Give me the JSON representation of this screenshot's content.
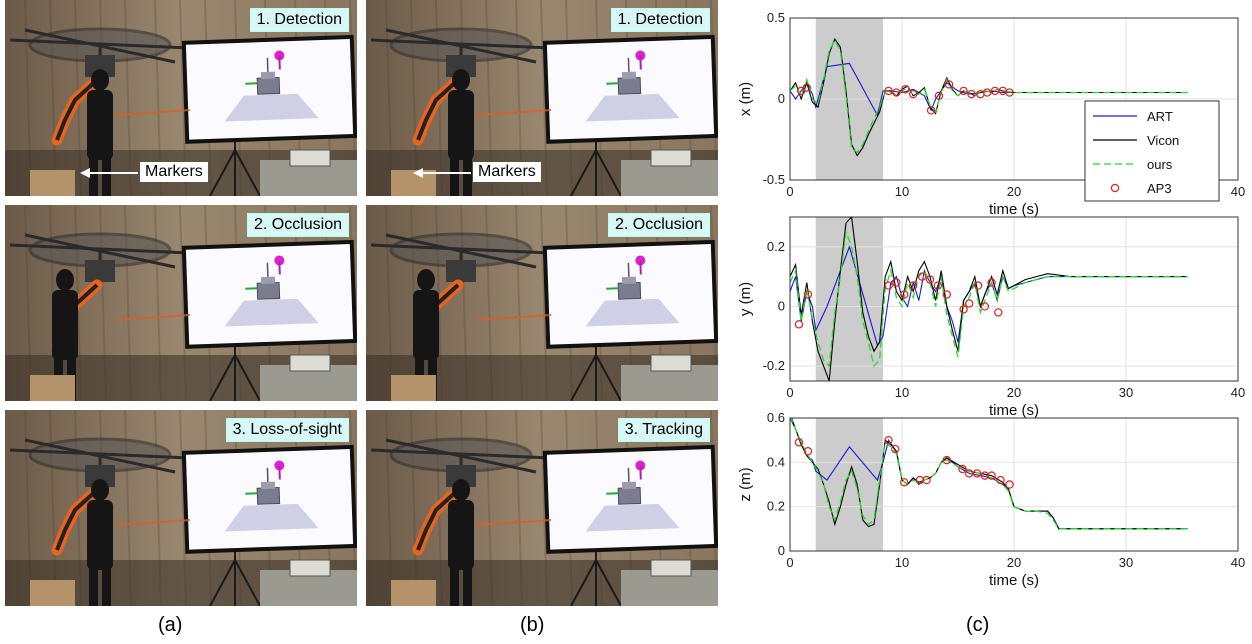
{
  "columns": {
    "a": {
      "caption": "(a)",
      "panels": [
        {
          "label": "1. Detection",
          "marker_label": "Markers"
        },
        {
          "label": "2. Occlusion"
        },
        {
          "label": "3. Loss-of-sight"
        }
      ]
    },
    "b": {
      "caption": "(b)",
      "panels": [
        {
          "label": "1. Detection",
          "marker_label": "Markers"
        },
        {
          "label": "2. Occlusion"
        },
        {
          "label": "3. Tracking"
        }
      ]
    },
    "c": {
      "caption": "(c)"
    }
  },
  "colors": {
    "ART": "#1a1adb",
    "Vicon": "#000000",
    "ours": "#22dd22",
    "AP3": "#e02020",
    "shade": "#cccccc",
    "robot_orange": "#e8641e",
    "label_bg": "#d8f7f7"
  },
  "chart_data": [
    {
      "type": "line",
      "xlabel": "time (s)",
      "ylabel": "x (m)",
      "xlim": [
        0,
        40
      ],
      "ylim": [
        -0.5,
        0.5
      ],
      "xticks": [
        0,
        10,
        20,
        30,
        40
      ],
      "yticks": [
        -0.5,
        0,
        0.5
      ],
      "grid": true,
      "shaded_interval": [
        2.3,
        8.3
      ],
      "legend": {
        "placement": "bottom-right",
        "entries": [
          "ART",
          "Vicon",
          "ours",
          "AP3"
        ]
      },
      "series": [
        {
          "name": "ART",
          "style": "solid",
          "x": [
            0,
            0.5,
            1,
            1.5,
            2,
            2.3,
            3.3,
            5.3,
            7.8,
            8.3,
            9,
            10,
            11,
            12,
            12.6,
            13,
            14,
            15,
            16,
            17,
            18,
            19,
            20,
            22,
            25,
            30,
            35.5
          ],
          "y": [
            0.05,
            0,
            0.05,
            0.1,
            0.03,
            -0.05,
            0.2,
            0.22,
            -0.1,
            0.05,
            0.05,
            0.04,
            0.06,
            0.02,
            -0.07,
            0.0,
            0.1,
            0.05,
            0.03,
            0.04,
            0.05,
            0.04,
            0.04,
            0.04,
            0.04,
            0.04,
            0.04
          ]
        },
        {
          "name": "Vicon",
          "style": "solid",
          "x": [
            0,
            0.5,
            1,
            1.5,
            2,
            2.5,
            3,
            3.5,
            4,
            4.5,
            5,
            5.5,
            6,
            6.5,
            7,
            7.5,
            8,
            8.5,
            9,
            9.5,
            10,
            10.5,
            11,
            11.5,
            12,
            12.5,
            13,
            13.5,
            14,
            14.5,
            15,
            15.5,
            16,
            16.5,
            17,
            17.5,
            18,
            18.5,
            19,
            20,
            22,
            25,
            30,
            35.5
          ],
          "y": [
            0.05,
            0.1,
            0,
            0.1,
            -0.02,
            -0.05,
            0.1,
            0.28,
            0.37,
            0.32,
            0.05,
            -0.28,
            -0.35,
            -0.3,
            -0.22,
            -0.15,
            -0.08,
            0.05,
            0.05,
            0.02,
            0.06,
            0.08,
            0.02,
            0.04,
            0.07,
            -0.05,
            -0.09,
            0.05,
            0.13,
            0.06,
            0.02,
            0.05,
            0.04,
            0.02,
            0.04,
            0.05,
            0.04,
            0.06,
            0.05,
            0.04,
            0.04,
            0.04,
            0.04,
            0.04
          ]
        },
        {
          "name": "ours",
          "style": "dashed",
          "x": [
            0,
            0.5,
            1,
            1.5,
            2,
            2.5,
            3,
            3.5,
            4,
            4.5,
            5,
            5.5,
            6,
            6.5,
            7,
            7.5,
            8,
            8.5,
            9,
            9.5,
            10,
            10.5,
            11,
            11.5,
            12,
            12.5,
            13,
            13.5,
            14,
            14.5,
            15,
            15.5,
            16,
            16.5,
            17,
            17.5,
            18,
            18.5,
            19,
            20,
            22,
            25,
            30,
            35.5
          ],
          "y": [
            0.05,
            0.08,
            0.02,
            0.12,
            0.0,
            -0.03,
            0.12,
            0.3,
            0.36,
            0.3,
            0.02,
            -0.3,
            -0.33,
            -0.28,
            -0.2,
            -0.12,
            -0.05,
            0.05,
            0.04,
            0.02,
            0.05,
            0.07,
            0.02,
            0.03,
            0.06,
            -0.04,
            -0.08,
            0.04,
            0.12,
            0.05,
            0.02,
            0.05,
            0.04,
            0.02,
            0.04,
            0.05,
            0.04,
            0.06,
            0.05,
            0.04,
            0.04,
            0.04,
            0.04,
            0.04
          ]
        },
        {
          "name": "AP3",
          "style": "markers",
          "x": [
            1,
            1.5,
            8.8,
            9.5,
            10.3,
            11,
            12.6,
            13.3,
            14.2,
            15.5,
            16.2,
            17,
            17.6,
            18.3,
            19,
            19.6
          ],
          "y": [
            0.05,
            0.07,
            0.05,
            0.04,
            0.06,
            0.03,
            -0.07,
            0.02,
            0.09,
            0.05,
            0.03,
            0.03,
            0.04,
            0.05,
            0.05,
            0.04
          ]
        }
      ]
    },
    {
      "type": "line",
      "xlabel": "time (s)",
      "ylabel": "y (m)",
      "xlim": [
        0,
        40
      ],
      "ylim": [
        -0.25,
        0.3
      ],
      "xticks": [
        0,
        10,
        20,
        30,
        40
      ],
      "yticks": [
        -0.2,
        0,
        0.2
      ],
      "grid": true,
      "shaded_interval": [
        2.3,
        8.3
      ],
      "series": [
        {
          "name": "ART",
          "style": "solid",
          "x": [
            0,
            0.5,
            1,
            1.5,
            2,
            2.3,
            3.3,
            5.3,
            7.8,
            8.3,
            9,
            9.5,
            10,
            10.5,
            11,
            11.5,
            12,
            12.5,
            13,
            13.5,
            14,
            14.5,
            15,
            15.5,
            16,
            16.5,
            17,
            17.5,
            18,
            18.5,
            19,
            19.5,
            20,
            21,
            22,
            23,
            25,
            30,
            35.5
          ],
          "y": [
            0.05,
            0.1,
            -0.05,
            0.05,
            0.0,
            -0.08,
            0.0,
            0.2,
            -0.13,
            -0.1,
            0.08,
            0.1,
            0.03,
            0.0,
            0.08,
            0.02,
            0.12,
            0.08,
            0.05,
            0.1,
            0.0,
            -0.05,
            -0.12,
            0.02,
            0.05,
            0.08,
            0.0,
            0.05,
            0.08,
            0.02,
            0.1,
            0.06,
            0.07,
            0.08,
            0.09,
            0.1,
            0.1,
            0.1,
            0.1
          ]
        },
        {
          "name": "Vicon",
          "style": "solid",
          "x": [
            0,
            0.5,
            1,
            1.5,
            2,
            2.5,
            3,
            3.5,
            4,
            4.5,
            5,
            5.5,
            6,
            6.5,
            7,
            7.5,
            8,
            8.5,
            9,
            9.5,
            10,
            10.5,
            11,
            11.5,
            12,
            12.5,
            13,
            13.5,
            14,
            14.5,
            15,
            15.5,
            16,
            16.5,
            17,
            17.5,
            18,
            18.5,
            19,
            19.5,
            20,
            21,
            22,
            23,
            25,
            30,
            35.5
          ],
          "y": [
            0.1,
            0.14,
            -0.03,
            0.08,
            -0.05,
            -0.15,
            -0.2,
            -0.25,
            -0.05,
            0.12,
            0.28,
            0.3,
            0.15,
            -0.02,
            -0.1,
            -0.15,
            -0.12,
            0.1,
            0.15,
            0.05,
            0.02,
            0.1,
            0.05,
            0.12,
            0.15,
            0.1,
            0.02,
            0.12,
            0.0,
            -0.08,
            -0.15,
            0.02,
            0.05,
            0.1,
            0.0,
            0.05,
            0.1,
            0.04,
            0.12,
            0.06,
            0.07,
            0.09,
            0.1,
            0.11,
            0.1,
            0.1,
            0.1
          ]
        },
        {
          "name": "ours",
          "style": "dashed",
          "x": [
            0,
            0.5,
            1,
            1.5,
            2,
            2.5,
            3,
            3.5,
            4,
            4.5,
            5,
            5.5,
            6,
            6.5,
            7,
            7.5,
            8,
            8.5,
            9,
            9.5,
            10,
            10.5,
            11,
            11.5,
            12,
            12.5,
            13,
            13.5,
            14,
            14.5,
            15,
            15.5,
            16,
            16.5,
            17,
            17.5,
            18,
            18.5,
            19,
            19.5,
            20,
            21,
            22,
            23,
            25,
            30,
            35.5
          ],
          "y": [
            0.08,
            0.12,
            -0.05,
            0.06,
            -0.04,
            -0.12,
            -0.18,
            -0.2,
            -0.02,
            0.1,
            0.25,
            0.2,
            0.1,
            -0.05,
            -0.12,
            -0.2,
            -0.18,
            0.06,
            0.12,
            0.03,
            0.0,
            0.08,
            0.03,
            0.1,
            0.12,
            0.08,
            0.0,
            0.1,
            -0.03,
            -0.1,
            -0.17,
            0.0,
            0.03,
            0.08,
            -0.02,
            0.03,
            0.08,
            0.02,
            0.1,
            0.05,
            0.06,
            0.08,
            0.09,
            0.1,
            0.1,
            0.1,
            0.1
          ]
        },
        {
          "name": "AP3",
          "style": "markers",
          "x": [
            0.8,
            1.6,
            8.8,
            9.5,
            10.2,
            11,
            11.8,
            12.5,
            13.2,
            14,
            15.5,
            16,
            16.8,
            17.4,
            18,
            18.6
          ],
          "y": [
            -0.06,
            0.04,
            0.07,
            0.08,
            0.04,
            0.07,
            0.1,
            0.09,
            0.07,
            0.04,
            -0.01,
            0.01,
            0.07,
            0.0,
            0.08,
            -0.02
          ]
        }
      ]
    },
    {
      "type": "line",
      "xlabel": "time (s)",
      "ylabel": "z (m)",
      "xlim": [
        0,
        40
      ],
      "ylim": [
        0,
        0.6
      ],
      "xticks": [
        0,
        10,
        20,
        30,
        40
      ],
      "yticks": [
        0,
        0.2,
        0.4,
        0.6
      ],
      "grid": true,
      "shaded_interval": [
        2.3,
        8.3
      ],
      "series": [
        {
          "name": "ART",
          "style": "solid",
          "x": [
            0,
            0.5,
            1,
            1.5,
            2,
            2.3,
            3.3,
            5.3,
            7.8,
            8.3,
            8.8,
            9.5,
            10,
            10.5,
            11,
            11.5,
            12,
            12.5,
            13,
            13.5,
            14,
            15,
            16,
            17,
            18,
            19,
            19.5,
            20,
            21,
            22,
            23,
            23.5,
            24,
            25,
            30,
            35.5
          ],
          "y": [
            0.6,
            0.55,
            0.48,
            0.43,
            0.41,
            0.36,
            0.32,
            0.47,
            0.32,
            0.4,
            0.5,
            0.45,
            0.32,
            0.3,
            0.33,
            0.3,
            0.32,
            0.33,
            0.35,
            0.4,
            0.42,
            0.38,
            0.35,
            0.34,
            0.33,
            0.3,
            0.28,
            0.2,
            0.18,
            0.18,
            0.18,
            0.15,
            0.1,
            0.1,
            0.1,
            0.1
          ]
        },
        {
          "name": "Vicon",
          "style": "solid",
          "x": [
            0,
            0.5,
            1,
            1.5,
            2,
            2.5,
            3,
            3.5,
            4,
            4.5,
            5,
            5.5,
            6,
            6.5,
            7,
            7.5,
            8,
            8.5,
            9,
            9.5,
            10,
            10.5,
            11,
            11.5,
            12,
            12.5,
            13,
            13.5,
            14,
            15,
            16,
            17,
            18,
            19,
            19.5,
            20,
            21,
            22,
            23,
            23.5,
            24,
            25,
            30,
            35.5
          ],
          "y": [
            0.62,
            0.55,
            0.48,
            0.43,
            0.4,
            0.37,
            0.3,
            0.22,
            0.12,
            0.2,
            0.3,
            0.38,
            0.3,
            0.14,
            0.11,
            0.12,
            0.3,
            0.5,
            0.48,
            0.45,
            0.32,
            0.3,
            0.33,
            0.31,
            0.32,
            0.33,
            0.35,
            0.4,
            0.42,
            0.39,
            0.36,
            0.35,
            0.34,
            0.31,
            0.28,
            0.2,
            0.18,
            0.18,
            0.18,
            0.15,
            0.1,
            0.1,
            0.1,
            0.1
          ]
        },
        {
          "name": "ours",
          "style": "dashed",
          "x": [
            0,
            0.5,
            1,
            1.5,
            2,
            2.5,
            3,
            3.5,
            4,
            4.5,
            5,
            5.5,
            6,
            6.5,
            7,
            7.5,
            8,
            8.5,
            9,
            9.5,
            10,
            10.5,
            11,
            11.5,
            12,
            12.5,
            13,
            13.5,
            14,
            15,
            16,
            17,
            18,
            19,
            19.5,
            20,
            21,
            22,
            23,
            23.5,
            24,
            25,
            30,
            35.5
          ],
          "y": [
            0.61,
            0.55,
            0.49,
            0.44,
            0.4,
            0.36,
            0.3,
            0.2,
            0.14,
            0.22,
            0.32,
            0.36,
            0.28,
            0.16,
            0.12,
            0.14,
            0.32,
            0.49,
            0.47,
            0.44,
            0.32,
            0.3,
            0.32,
            0.31,
            0.32,
            0.33,
            0.35,
            0.4,
            0.41,
            0.38,
            0.36,
            0.35,
            0.33,
            0.3,
            0.27,
            0.2,
            0.18,
            0.18,
            0.17,
            0.14,
            0.1,
            0.1,
            0.1,
            0.1
          ]
        },
        {
          "name": "AP3",
          "style": "markers",
          "x": [
            0.8,
            1.6,
            8.8,
            9.4,
            10.2,
            11.6,
            12.2,
            14,
            15.4,
            16,
            16.7,
            17.4,
            18,
            18.8,
            19.6
          ],
          "y": [
            0.49,
            0.45,
            0.5,
            0.46,
            0.31,
            0.32,
            0.32,
            0.41,
            0.37,
            0.35,
            0.35,
            0.34,
            0.34,
            0.32,
            0.3
          ]
        }
      ]
    }
  ]
}
